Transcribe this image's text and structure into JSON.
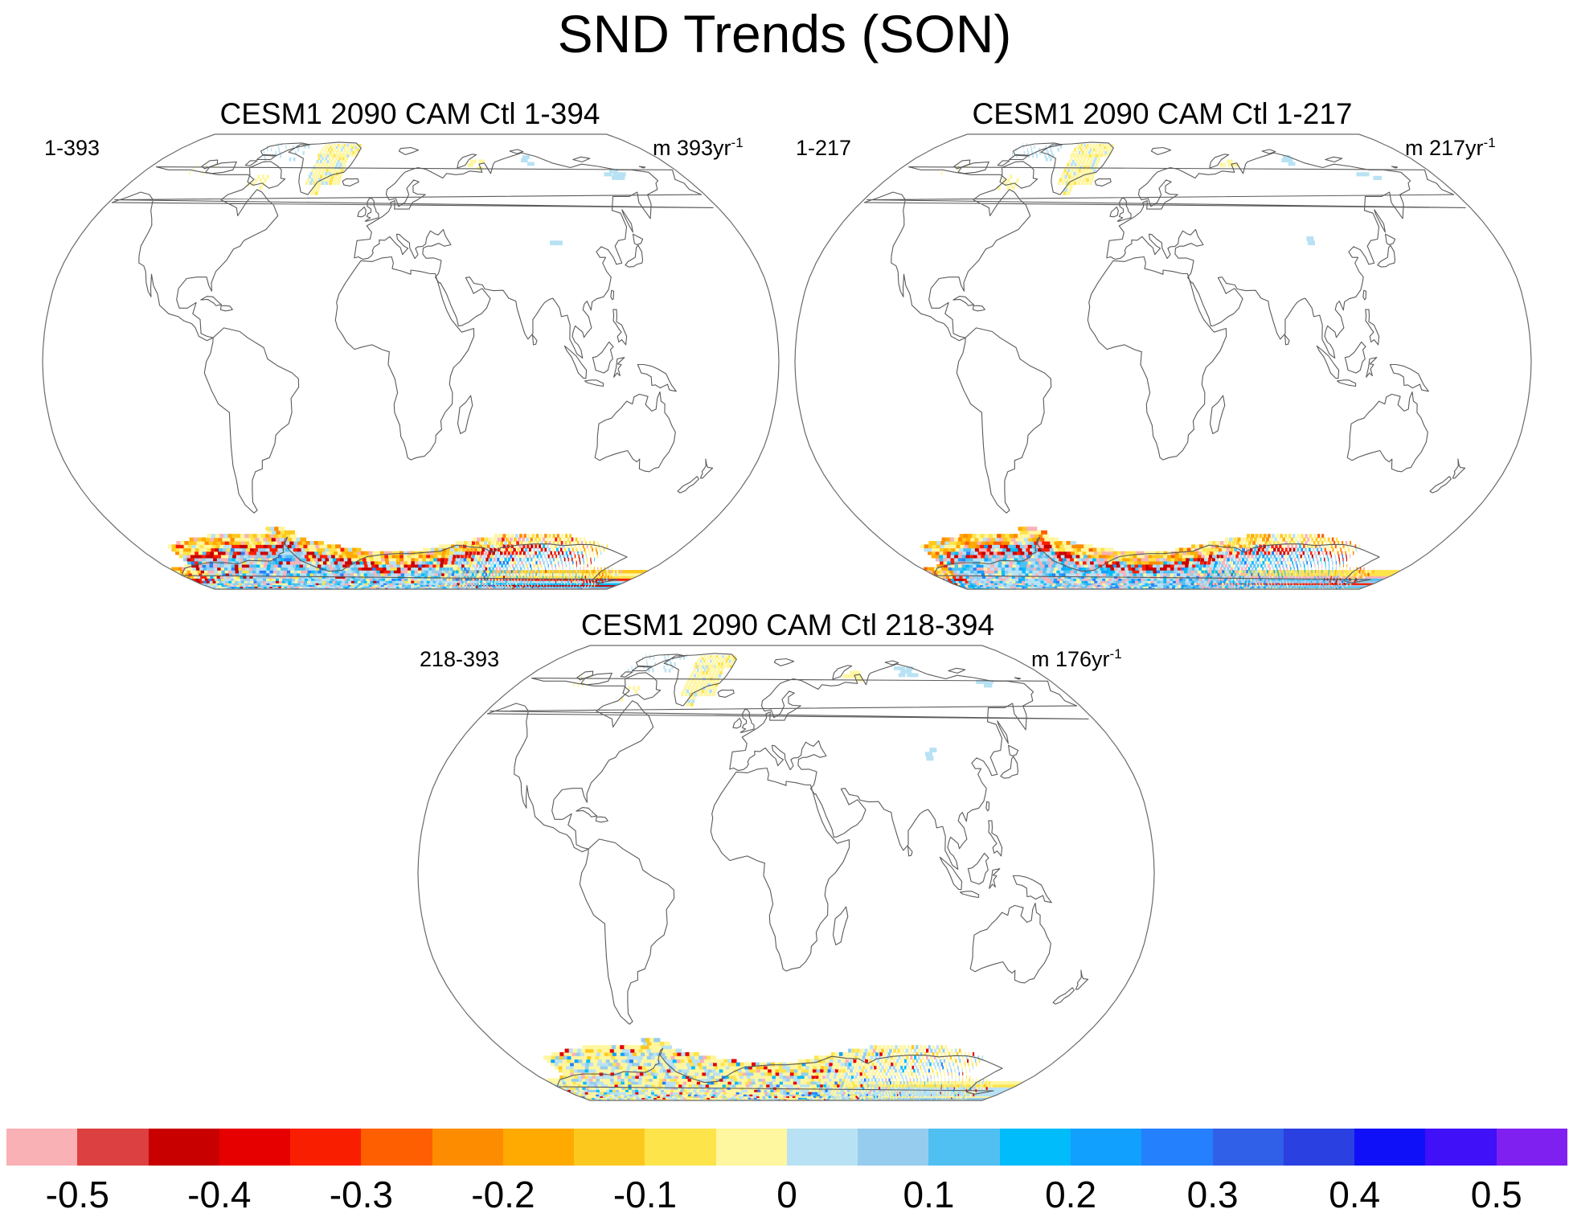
{
  "title": "SND Trends (SON)",
  "panels": [
    {
      "title": "CESM1 2090 CAM Ctl 1-394",
      "left_label": "1-393",
      "right_label": "m 393yr",
      "right_sup": "-1"
    },
    {
      "title": "CESM1 2090 CAM Ctl 1-217",
      "left_label": "1-217",
      "right_label": "m 217yr",
      "right_sup": "-1"
    },
    {
      "title": "CESM1 2090 CAM Ctl 218-394",
      "left_label": "218-393",
      "right_label": "m 176yr",
      "right_sup": "-1"
    }
  ],
  "projection": "Robinson (global, continental outlines)",
  "colorbar": {
    "colors": [
      "#f9b1b6",
      "#dc4040",
      "#c80000",
      "#e60000",
      "#fa1e00",
      "#fe5f00",
      "#fe8c00",
      "#ffaa00",
      "#fdc81e",
      "#fde44b",
      "#fff6a0",
      "#b8e2f4",
      "#96ccee",
      "#50c0f2",
      "#00bcfa",
      "#12a0fe",
      "#2480fc",
      "#3060e8",
      "#2a40e0",
      "#1010f8",
      "#4010f8",
      "#8020f0"
    ],
    "tick_labels": [
      "-0.5",
      "-0.4",
      "-0.3",
      "-0.2",
      "-0.1",
      "0",
      "0.1",
      "0.2",
      "0.3",
      "0.4",
      "0.5"
    ],
    "tick_values": [
      -0.5,
      -0.4,
      -0.3,
      -0.2,
      -0.1,
      0,
      0.1,
      0.2,
      0.3,
      0.4,
      0.5
    ]
  }
}
